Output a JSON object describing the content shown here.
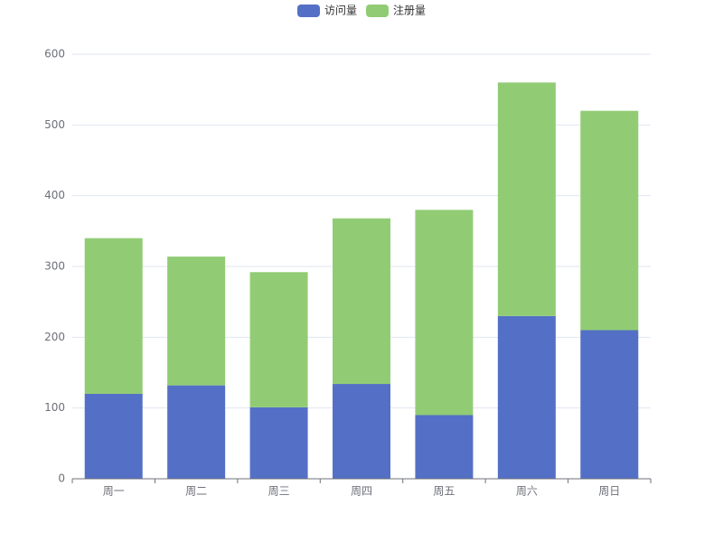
{
  "chart_data": {
    "type": "bar",
    "stacked": true,
    "categories": [
      "周一",
      "周二",
      "周三",
      "周四",
      "周五",
      "周六",
      "周日"
    ],
    "series": [
      {
        "name": "访问量",
        "color": "#5470c6",
        "values": [
          120,
          132,
          101,
          134,
          90,
          230,
          210
        ]
      },
      {
        "name": "注册量",
        "color": "#91cc75",
        "values": [
          220,
          182,
          191,
          234,
          290,
          330,
          310
        ]
      }
    ],
    "ylim": [
      0,
      600
    ],
    "yticks": [
      0,
      100,
      200,
      300,
      400,
      500,
      600
    ],
    "grid": true,
    "legend_position": "top-center"
  }
}
